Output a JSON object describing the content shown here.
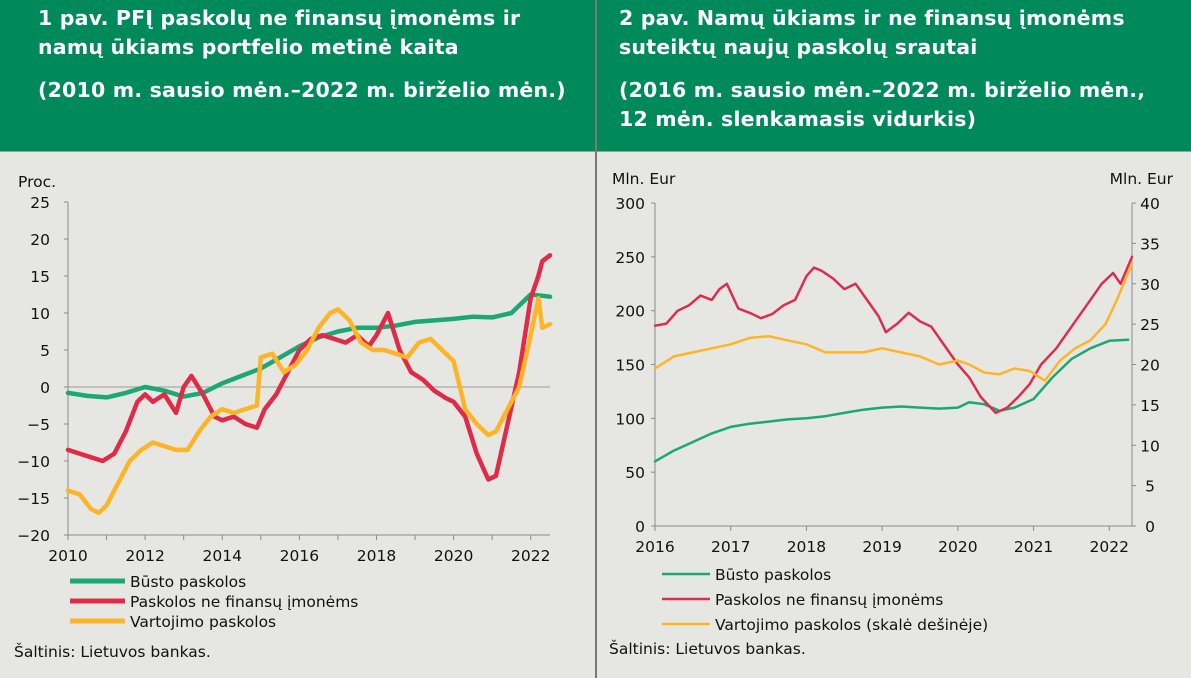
{
  "chart_data": [
    {
      "type": "line",
      "title": "1 pav. PFĮ paskolų ne finansų įmonėms ir namų ūkiams portfelio metinė kaita",
      "subtitle": "(2010 m. sausio mėn.–2022 m. birželio mėn.)",
      "ylabel": "Proc.",
      "ylim": [
        -20,
        25
      ],
      "yticks": [
        -20,
        -15,
        -10,
        -5,
        0,
        5,
        10,
        15,
        20,
        25
      ],
      "xlim": [
        2010,
        2022.5
      ],
      "xticks": [
        2010,
        2012,
        2014,
        2016,
        2018,
        2020,
        2022
      ],
      "legend_position": "bottom",
      "source": "Šaltinis: Lietuvos bankas.",
      "series": [
        {
          "name": "Būsto paskolos",
          "color": "#1aa874",
          "x": [
            2010,
            2010.5,
            2011,
            2011.5,
            2012,
            2012.5,
            2013,
            2013.5,
            2014,
            2014.5,
            2015,
            2015.5,
            2016,
            2016.5,
            2017,
            2017.5,
            2018,
            2018.5,
            2019,
            2019.5,
            2020,
            2020.5,
            2021,
            2021.5,
            2022,
            2022.5
          ],
          "y": [
            -0.8,
            -1.2,
            -1.4,
            -0.8,
            0,
            -0.5,
            -1.3,
            -0.8,
            0.5,
            1.5,
            2.5,
            4,
            5.5,
            6.7,
            7.5,
            8,
            8,
            8.3,
            8.8,
            9,
            9.2,
            9.5,
            9.4,
            10,
            12.5,
            12.2
          ]
        },
        {
          "name": "Paskolos ne finansų įmonėms",
          "color": "#e02a48",
          "x": [
            2010,
            2010.3,
            2010.6,
            2010.9,
            2011.2,
            2011.5,
            2011.8,
            2012,
            2012.2,
            2012.5,
            2012.8,
            2013,
            2013.2,
            2013.5,
            2013.8,
            2014,
            2014.3,
            2014.6,
            2014.9,
            2015.1,
            2015.4,
            2015.7,
            2016,
            2016.3,
            2016.6,
            2016.9,
            2017.2,
            2017.5,
            2017.8,
            2018,
            2018.3,
            2018.6,
            2018.9,
            2019.2,
            2019.5,
            2019.8,
            2020,
            2020.3,
            2020.6,
            2020.9,
            2021.1,
            2021.4,
            2021.7,
            2022,
            2022.2,
            2022.3,
            2022.5
          ],
          "y": [
            -8.5,
            -9,
            -9.5,
            -10,
            -9,
            -6,
            -2,
            -1,
            -2,
            -1,
            -3.5,
            0,
            1.5,
            -1,
            -4,
            -4.5,
            -4,
            -5,
            -5.5,
            -3,
            -1,
            2,
            5,
            6.5,
            7,
            6.5,
            6,
            7,
            5.5,
            7,
            10,
            5,
            2,
            1,
            -0.5,
            -1.5,
            -2,
            -4,
            -9,
            -12.5,
            -12,
            -5,
            2,
            12,
            15,
            17,
            17.8
          ]
        },
        {
          "name": "Vartojimo paskolos",
          "color": "#fdb527",
          "x": [
            2010,
            2010.3,
            2010.6,
            2010.8,
            2011,
            2011.3,
            2011.6,
            2011.9,
            2012.2,
            2012.5,
            2012.8,
            2013.1,
            2013.4,
            2013.7,
            2014,
            2014.3,
            2014.6,
            2014.9,
            2015,
            2015.3,
            2015.6,
            2015.9,
            2016.2,
            2016.5,
            2016.8,
            2017,
            2017.3,
            2017.6,
            2017.9,
            2018.2,
            2018.5,
            2018.8,
            2019.1,
            2019.4,
            2019.7,
            2020,
            2020.3,
            2020.6,
            2020.9,
            2021.1,
            2021.4,
            2021.7,
            2022,
            2022.2,
            2022.3,
            2022.5
          ],
          "y": [
            -14,
            -14.5,
            -16.5,
            -17,
            -16,
            -13,
            -10,
            -8.5,
            -7.5,
            -8,
            -8.5,
            -8.5,
            -6,
            -4,
            -3,
            -3.5,
            -3,
            -2.5,
            4,
            4.5,
            2,
            3,
            5,
            8,
            10,
            10.5,
            9,
            6,
            5,
            5,
            4.5,
            4,
            6,
            6.5,
            5,
            3.5,
            -3,
            -5,
            -6.5,
            -6,
            -3,
            0,
            7,
            12,
            8,
            8.5
          ]
        }
      ]
    },
    {
      "type": "line",
      "title": "2 pav. Namų ūkiams ir ne finansų įmonėms suteiktų naujų paskolų srautai",
      "subtitle": "(2016 m. sausio mėn.–2022 m. birželio mėn., 12 mėn. slenkamasis vidurkis)",
      "ylabel": "Mln. Eur",
      "ylabel_right": "Mln. Eur",
      "ylim": [
        0,
        300
      ],
      "ylim_right": [
        0,
        40
      ],
      "yticks": [
        0,
        50,
        100,
        150,
        200,
        250,
        300
      ],
      "yticks_right": [
        0,
        5,
        10,
        15,
        20,
        25,
        30,
        35,
        40
      ],
      "xlim": [
        2016,
        2022.3
      ],
      "xticks": [
        2016,
        2017,
        2018,
        2019,
        2020,
        2021,
        2022
      ],
      "legend_position": "bottom",
      "source": "Šaltinis: Lietuvos bankas.",
      "series": [
        {
          "name": "Būsto paskolos",
          "axis": "left",
          "color": "#1aa874",
          "x": [
            2016,
            2016.25,
            2016.5,
            2016.75,
            2017,
            2017.25,
            2017.5,
            2017.75,
            2018,
            2018.25,
            2018.5,
            2018.75,
            2019,
            2019.25,
            2019.5,
            2019.75,
            2020,
            2020.15,
            2020.35,
            2020.55,
            2020.75,
            2021,
            2021.25,
            2021.5,
            2021.75,
            2022,
            2022.25
          ],
          "y": [
            60,
            70,
            78,
            86,
            92,
            95,
            97,
            99,
            100,
            102,
            105,
            108,
            110,
            111,
            110,
            109,
            110,
            115,
            113,
            107,
            110,
            118,
            138,
            155,
            165,
            172,
            173
          ]
        },
        {
          "name": "Paskolos ne finansų įmonėms",
          "axis": "left",
          "color": "#dd2d4f",
          "x": [
            2016,
            2016.15,
            2016.3,
            2016.45,
            2016.6,
            2016.75,
            2016.85,
            2016.95,
            2017.1,
            2017.25,
            2017.4,
            2017.55,
            2017.7,
            2017.85,
            2018,
            2018.1,
            2018.2,
            2018.35,
            2018.5,
            2018.65,
            2018.8,
            2018.95,
            2019.05,
            2019.2,
            2019.35,
            2019.5,
            2019.65,
            2019.8,
            2020,
            2020.15,
            2020.3,
            2020.5,
            2020.65,
            2020.8,
            2020.95,
            2021.1,
            2021.3,
            2021.5,
            2021.7,
            2021.9,
            2022.05,
            2022.15,
            2022.3
          ],
          "y": [
            186,
            188,
            200,
            205,
            214,
            210,
            220,
            225,
            202,
            198,
            193,
            197,
            205,
            210,
            232,
            240,
            237,
            230,
            220,
            225,
            210,
            195,
            180,
            188,
            198,
            190,
            185,
            170,
            150,
            138,
            120,
            105,
            110,
            120,
            132,
            150,
            165,
            185,
            205,
            225,
            235,
            225,
            250
          ]
        },
        {
          "name": "Vartojimo paskolos (skalė dešinėje)",
          "axis": "right",
          "color": "#fdb527",
          "x": [
            2016,
            2016.25,
            2016.5,
            2016.75,
            2017,
            2017.25,
            2017.5,
            2017.75,
            2018,
            2018.25,
            2018.5,
            2018.75,
            2019,
            2019.25,
            2019.5,
            2019.75,
            2020,
            2020.15,
            2020.35,
            2020.55,
            2020.75,
            2020.95,
            2021.15,
            2021.35,
            2021.55,
            2021.75,
            2021.95,
            2022.1,
            2022.3
          ],
          "y": [
            19.5,
            21,
            21.5,
            22,
            22.5,
            23.3,
            23.5,
            23,
            22.5,
            21.5,
            21.5,
            21.5,
            22,
            21.5,
            21,
            20,
            20.5,
            20,
            19,
            18.8,
            19.5,
            19.2,
            18,
            20.5,
            22,
            23,
            25,
            28,
            32.5
          ]
        }
      ]
    }
  ]
}
